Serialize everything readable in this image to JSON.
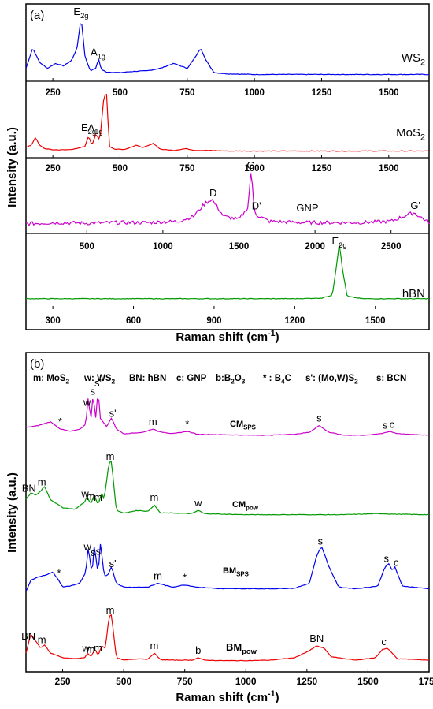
{
  "chart_data": [
    {
      "panel": "(a)",
      "type": "line",
      "ylabel": "Intensity (a.u.)",
      "xlabel": "Raman shift (cm-1)",
      "subplots": [
        {
          "name": "WS2",
          "color": "#0000ee",
          "xlim": [
            150,
            1650
          ],
          "xticks": [
            "250",
            "500",
            "750",
            "1000",
            "1250",
            "1500"
          ],
          "xtick_values": [
            250,
            500,
            750,
            1000,
            1250,
            1500
          ],
          "series": [
            {
              "name": "WS2",
              "x": [
                150,
                175,
                200,
                230,
                260,
                290,
                320,
                340,
                355,
                370,
                390,
                410,
                420,
                430,
                450,
                500,
                550,
                600,
                650,
                700,
                750,
                780,
                800,
                820,
                850,
                900,
                1000,
                1100,
                1200,
                1300,
                1400,
                1500,
                1650
              ],
              "y": [
                0.12,
                0.45,
                0.22,
                0.12,
                0.2,
                0.16,
                0.25,
                0.45,
                0.95,
                0.3,
                0.08,
                0.12,
                0.28,
                0.1,
                0.06,
                0.05,
                0.07,
                0.08,
                0.12,
                0.2,
                0.12,
                0.3,
                0.45,
                0.25,
                0.05,
                0.03,
                0.02,
                0.02,
                0.02,
                0.02,
                0.02,
                0.02,
                0.02
              ]
            }
          ],
          "annotations": [
            {
              "text": "E2g",
              "x": 355
            },
            {
              "text": "A1g",
              "x": 418
            }
          ]
        },
        {
          "name": "MoS2",
          "color": "#ee0000",
          "xlim": [
            150,
            1650
          ],
          "xticks": [
            "250",
            "500",
            "750",
            "1000",
            "1250",
            "1500"
          ],
          "xtick_values": [
            250,
            500,
            750,
            1000,
            1250,
            1500
          ],
          "series": [
            {
              "name": "MoS2",
              "x": [
                150,
                170,
                185,
                200,
                220,
                250,
                300,
                340,
                370,
                383,
                395,
                410,
                425,
                440,
                450,
                460,
                480,
                520,
                560,
                580,
                600,
                625,
                650,
                700,
                745,
                780,
                820,
                900,
                1000,
                1200,
                1400,
                1650
              ],
              "y": [
                0.08,
                0.12,
                0.25,
                0.12,
                0.06,
                0.04,
                0.04,
                0.06,
                0.1,
                0.28,
                0.12,
                0.3,
                0.2,
                0.95,
                0.98,
                0.1,
                0.05,
                0.05,
                0.12,
                0.08,
                0.1,
                0.15,
                0.05,
                0.03,
                0.06,
                0.03,
                0.03,
                0.02,
                0.02,
                0.02,
                0.02,
                0.02
              ]
            }
          ],
          "annotations": [
            {
              "text": "E2g",
              "x": 383
            },
            {
              "text": "A1g",
              "x": 408
            }
          ]
        },
        {
          "name": "GNP",
          "color": "#cc00cc",
          "xlim": [
            100,
            2750
          ],
          "xticks": [
            "500",
            "1000",
            "1500",
            "2000",
            "2500"
          ],
          "xtick_values": [
            500,
            1000,
            1500,
            2000,
            2500
          ],
          "series": [
            {
              "name": "GNP",
              "x": [
                100,
                300,
                500,
                700,
                900,
                1100,
                1200,
                1280,
                1320,
                1350,
                1400,
                1500,
                1560,
                1580,
                1600,
                1620,
                1700,
                1900,
                2100,
                2300,
                2500,
                2600,
                2650,
                2700,
                2750
              ],
              "y": [
                0.08,
                0.1,
                0.09,
                0.1,
                0.1,
                0.12,
                0.2,
                0.42,
                0.48,
                0.38,
                0.2,
                0.15,
                0.35,
                0.98,
                0.3,
                0.22,
                0.12,
                0.1,
                0.1,
                0.1,
                0.12,
                0.22,
                0.26,
                0.18,
                0.1
              ]
            }
          ],
          "annotations": [
            {
              "text": "D",
              "x": 1330
            },
            {
              "text": "G",
              "x": 1578
            },
            {
              "text": "D'",
              "x": 1615
            },
            {
              "text": "GNP",
              "x": 1950
            },
            {
              "text": "G'",
              "x": 2660
            }
          ]
        },
        {
          "name": "hBN",
          "color": "#009900",
          "xlim": [
            200,
            1700
          ],
          "xticks": [
            "300",
            "600",
            "900",
            "1200",
            "1500"
          ],
          "xtick_values": [
            300,
            600,
            900,
            1200,
            1500
          ],
          "series": [
            {
              "name": "hBN",
              "x": [
                200,
                400,
                600,
                800,
                1000,
                1200,
                1300,
                1340,
                1355,
                1366,
                1378,
                1395,
                1450,
                1550,
                1700
              ],
              "y": [
                0.08,
                0.08,
                0.08,
                0.08,
                0.08,
                0.08,
                0.09,
                0.14,
                0.6,
                0.98,
                0.55,
                0.12,
                0.08,
                0.08,
                0.08
              ]
            }
          ],
          "annotations": [
            {
              "text": "E2g",
              "x": 1366
            }
          ]
        }
      ]
    },
    {
      "panel": "(b)",
      "type": "line",
      "ylabel": "Intensity (a.u.)",
      "xlabel": "Raman shift (cm-1)",
      "xlim": [
        100,
        1750
      ],
      "xticks": [
        "250",
        "500",
        "750",
        "1000",
        "1250",
        "1500",
        "1750"
      ],
      "xtick_values": [
        250,
        500,
        750,
        1000,
        1250,
        1500,
        1750
      ],
      "legend_text": [
        "m: MoS2",
        "w: WS2",
        "BN: hBN",
        "c: GNP",
        "b:B2O3",
        "* : B4C",
        "s': (Mo,W)S2",
        "s: BCN"
      ],
      "series": [
        {
          "name": "CMSPS",
          "color": "#cc00cc",
          "x": [
            100,
            150,
            200,
            240,
            280,
            320,
            345,
            355,
            365,
            375,
            385,
            395,
            405,
            415,
            430,
            450,
            470,
            500,
            580,
            620,
            640,
            700,
            760,
            800,
            900,
            1000,
            1100,
            1200,
            1260,
            1300,
            1340,
            1400,
            1500,
            1560,
            1590,
            1620,
            1750
          ],
          "y": [
            0.18,
            0.22,
            0.3,
            0.15,
            0.1,
            0.14,
            0.25,
            0.85,
            0.3,
            0.9,
            0.35,
            0.95,
            0.35,
            0.3,
            0.2,
            0.38,
            0.15,
            0.05,
            0.08,
            0.15,
            0.1,
            0.05,
            0.1,
            0.04,
            0.03,
            0.02,
            0.02,
            0.04,
            0.08,
            0.22,
            0.08,
            0.02,
            0.02,
            0.06,
            0.1,
            0.05,
            0.02
          ]
        },
        {
          "name": "CMpow",
          "color": "#009900",
          "x": [
            100,
            120,
            140,
            160,
            175,
            200,
            250,
            300,
            340,
            350,
            365,
            380,
            395,
            410,
            420,
            440,
            450,
            470,
            500,
            560,
            600,
            625,
            650,
            700,
            780,
            805,
            830,
            900,
            1000,
            1200,
            1400,
            1550,
            1600,
            1750
          ],
          "y": [
            0.3,
            0.42,
            0.38,
            0.45,
            0.55,
            0.3,
            0.15,
            0.12,
            0.25,
            0.35,
            0.22,
            0.38,
            0.2,
            0.42,
            0.3,
            0.98,
            1.0,
            0.1,
            0.05,
            0.1,
            0.08,
            0.2,
            0.05,
            0.05,
            0.04,
            0.1,
            0.04,
            0.03,
            0.02,
            0.02,
            0.02,
            0.04,
            0.03,
            0.02
          ]
        },
        {
          "name": "BMSPS",
          "color": "#0000ee",
          "x": [
            100,
            120,
            140,
            180,
            210,
            235,
            250,
            280,
            320,
            345,
            355,
            370,
            380,
            395,
            405,
            420,
            435,
            450,
            470,
            500,
            600,
            640,
            680,
            700,
            750,
            800,
            900,
            1000,
            1100,
            1200,
            1260,
            1290,
            1310,
            1340,
            1380,
            1450,
            1540,
            1570,
            1585,
            1600,
            1610,
            1640,
            1750
          ],
          "y": [
            0.0,
            0.2,
            0.25,
            0.3,
            0.35,
            0.2,
            0.08,
            0.1,
            0.15,
            0.35,
            0.82,
            0.3,
            0.85,
            0.3,
            0.88,
            0.28,
            0.3,
            0.45,
            0.15,
            0.08,
            0.08,
            0.15,
            0.1,
            0.08,
            0.12,
            0.08,
            0.05,
            0.05,
            0.05,
            0.06,
            0.15,
            0.65,
            0.82,
            0.45,
            0.08,
            0.05,
            0.1,
            0.45,
            0.5,
            0.38,
            0.45,
            0.1,
            0.05
          ]
        },
        {
          "name": "BMpow",
          "color": "#ee0000",
          "x": [
            100,
            120,
            140,
            160,
            175,
            200,
            250,
            300,
            340,
            352,
            365,
            383,
            395,
            410,
            425,
            440,
            450,
            470,
            500,
            560,
            600,
            625,
            650,
            700,
            780,
            805,
            830,
            900,
            1000,
            1100,
            1200,
            1260,
            1290,
            1320,
            1350,
            1450,
            1530,
            1560,
            1580,
            1620,
            1750
          ],
          "y": [
            0.2,
            0.6,
            0.45,
            0.3,
            0.38,
            0.2,
            0.1,
            0.08,
            0.1,
            0.2,
            0.12,
            0.28,
            0.15,
            0.35,
            0.3,
            0.98,
            1.0,
            0.1,
            0.05,
            0.08,
            0.07,
            0.2,
            0.06,
            0.05,
            0.05,
            0.1,
            0.05,
            0.04,
            0.04,
            0.05,
            0.1,
            0.25,
            0.35,
            0.3,
            0.12,
            0.05,
            0.1,
            0.28,
            0.3,
            0.08,
            0.05
          ]
        }
      ],
      "annotations": [
        {
          "series": "CMSPS",
          "text": "*",
          "x": 240
        },
        {
          "series": "CMSPS",
          "text": "w",
          "x": 350
        },
        {
          "series": "CMSPS",
          "text": "s",
          "x": 373
        },
        {
          "series": "CMSPS",
          "text": "s'",
          "x": 395
        },
        {
          "series": "CMSPS",
          "text": "s'",
          "x": 455
        },
        {
          "series": "CMSPS",
          "text": "m",
          "x": 620
        },
        {
          "series": "CMSPS",
          "text": "*",
          "x": 760
        },
        {
          "series": "CMSPS",
          "text": "s",
          "x": 1300
        },
        {
          "series": "CMSPS",
          "text": "s",
          "x": 1570
        },
        {
          "series": "CMSPS",
          "text": "c",
          "x": 1598
        },
        {
          "series": "CMpow",
          "text": "BN",
          "x": 112
        },
        {
          "series": "CMpow",
          "text": "m",
          "x": 165
        },
        {
          "series": "CMpow",
          "text": "w",
          "x": 342
        },
        {
          "series": "CMpow",
          "text": "m",
          "x": 365
        },
        {
          "series": "CMpow",
          "text": "m",
          "x": 395
        },
        {
          "series": "CMpow",
          "text": "m",
          "x": 445
        },
        {
          "series": "CMpow",
          "text": "m",
          "x": 625
        },
        {
          "series": "CMpow",
          "text": "w",
          "x": 805
        },
        {
          "series": "BMSPS",
          "text": "*",
          "x": 235
        },
        {
          "series": "BMSPS",
          "text": "w",
          "x": 352
        },
        {
          "series": "BMSPS",
          "text": "s",
          "x": 375
        },
        {
          "series": "BMSPS",
          "text": "s'",
          "x": 400
        },
        {
          "series": "BMSPS",
          "text": "s'",
          "x": 455
        },
        {
          "series": "BMSPS",
          "text": "m",
          "x": 640
        },
        {
          "series": "BMSPS",
          "text": "*",
          "x": 750
        },
        {
          "series": "BMSPS",
          "text": "s",
          "x": 1305
        },
        {
          "series": "BMSPS",
          "text": "s",
          "x": 1575
        },
        {
          "series": "BMSPS",
          "text": "c",
          "x": 1615
        },
        {
          "series": "BMpow",
          "text": "BN",
          "x": 110
        },
        {
          "series": "BMpow",
          "text": "m",
          "x": 165
        },
        {
          "series": "BMpow",
          "text": "w",
          "x": 345
        },
        {
          "series": "BMpow",
          "text": "m",
          "x": 365
        },
        {
          "series": "BMpow",
          "text": "m",
          "x": 395
        },
        {
          "series": "BMpow",
          "text": "m",
          "x": 445
        },
        {
          "series": "BMpow",
          "text": "m",
          "x": 625
        },
        {
          "series": "BMpow",
          "text": "b",
          "x": 805
        },
        {
          "series": "BMpow",
          "text": "BN",
          "x": 1290
        },
        {
          "series": "BMpow",
          "text": "c",
          "x": 1565
        }
      ]
    }
  ]
}
